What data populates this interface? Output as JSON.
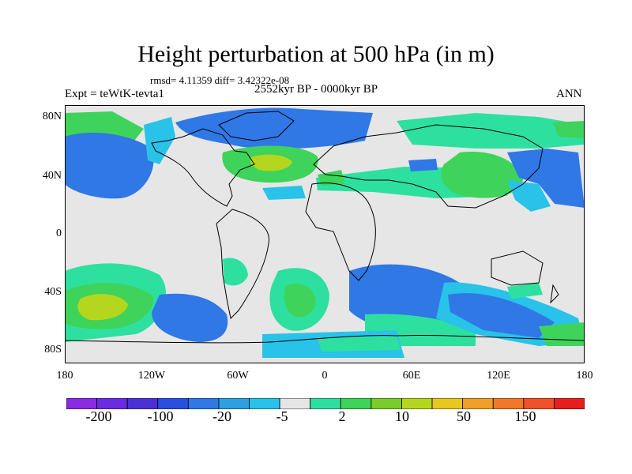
{
  "title": "Height perturbation at 500 hPa (in m)",
  "stats": "rmsd= 4.11359  diff= 3.42322e-08",
  "period": "2552kyr BP - 0000kyr BP",
  "experiment": "Expt = teWtK-tevta1",
  "season": "ANN",
  "axes": {
    "x_ticks": [
      "180",
      "120W",
      "60W",
      "0",
      "60E",
      "120E",
      "180"
    ],
    "y_ticks": [
      "80N",
      "40N",
      "0",
      "40S",
      "80S"
    ]
  },
  "colorbar": {
    "colors": [
      "#8a2be2",
      "#6a2be2",
      "#4b30d8",
      "#2a4fe0",
      "#2f78e6",
      "#2aa0e0",
      "#29c2e8",
      "#e6e6e6",
      "#2ee0a0",
      "#3ed35a",
      "#7acc2a",
      "#b4d61e",
      "#e6c81e",
      "#f0a028",
      "#f07828",
      "#f05028",
      "#e81e1e"
    ],
    "labels": [
      "-200",
      "-100",
      "-20",
      "-5",
      "2",
      "10",
      "50",
      "150"
    ]
  },
  "palette": {
    "blue": "#2f78e6",
    "cyan": "#29c2e8",
    "mint": "#2ee0a0",
    "green": "#3ed35a",
    "yellowgreen": "#b4d61e",
    "background": "#e6e6e6",
    "coast": "#000000"
  }
}
